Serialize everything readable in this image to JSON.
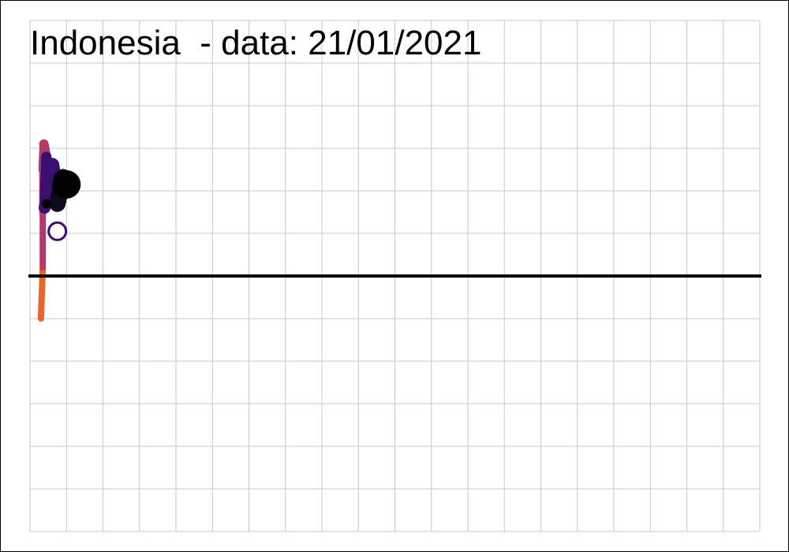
{
  "chart": {
    "title": "Indonesia  - data: 21/01/2021"
  },
  "chart_data": {
    "type": "line",
    "title": "Indonesia  - data: 21/01/2021",
    "xlabel": "",
    "ylabel": "",
    "xlim": [
      0,
      20
    ],
    "ylim": [
      -6,
      6
    ],
    "grid": true,
    "legend": "none",
    "reference_line_y": 0,
    "colors": {
      "grid": "#c8c8c8",
      "reference_line": "#000000",
      "path_start": "#e8662a",
      "path_mid": "#b33a6b",
      "path_late": "#3b0f70",
      "path_end": "#0d0a1f",
      "end_marker_fill": "#000000",
      "start_marker_fill": "#ffffff",
      "start_marker_stroke": "#3b0f70"
    },
    "series": [
      {
        "x": [
          0.3,
          0.35,
          0.35,
          0.35,
          0.38,
          0.45,
          0.4,
          0.5,
          0.6,
          0.75,
          0.9,
          1.0
        ],
        "y": [
          -1.0,
          0.2,
          1.5,
          2.5,
          3.1,
          2.8,
          1.6,
          2.0,
          2.6,
          1.7,
          2.3,
          2.1
        ],
        "size": [
          4,
          4,
          4,
          5,
          6,
          6,
          7,
          8,
          9,
          10,
          11,
          12
        ]
      }
    ],
    "markers": {
      "start": {
        "x": 0.75,
        "y": 1.05
      },
      "end": {
        "x": 1.0,
        "y": 2.15
      },
      "small_dot": {
        "x": 0.45,
        "y": 1.7
      }
    }
  }
}
